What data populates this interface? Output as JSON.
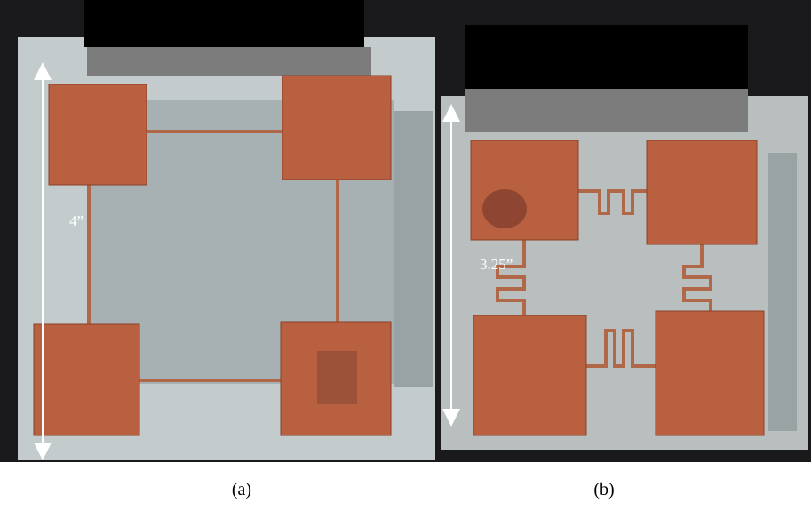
{
  "panels": [
    {
      "dimension_label": "4”",
      "caption": "(a)"
    },
    {
      "dimension_label": "3.25”",
      "caption": "(b)"
    }
  ]
}
